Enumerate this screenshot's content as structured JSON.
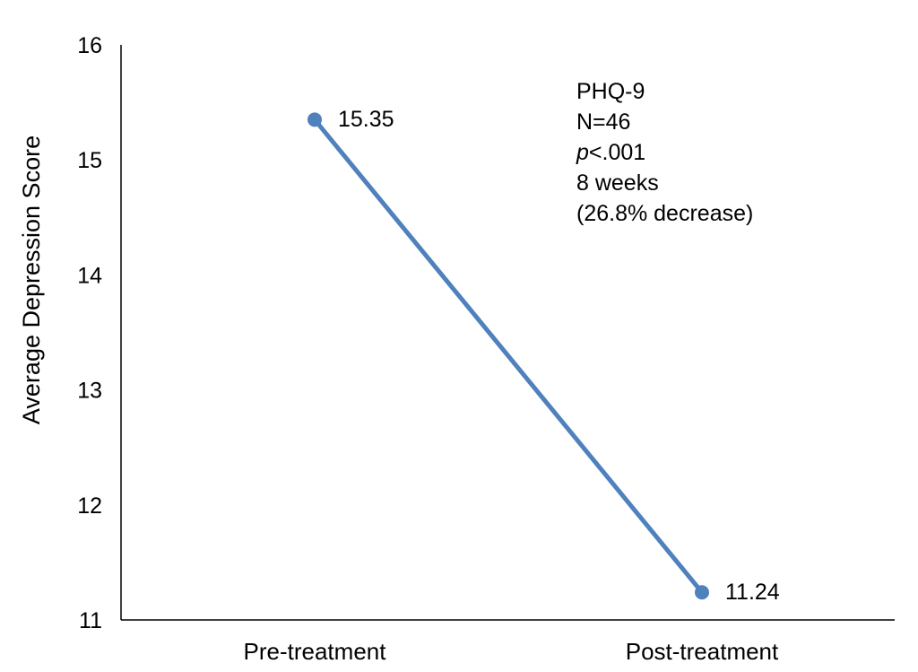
{
  "chart_data": {
    "type": "line",
    "categories": [
      "Pre-treatment",
      "Post-treatment"
    ],
    "series": [
      {
        "values": [
          15.35,
          11.24
        ],
        "data_labels": [
          "15.35",
          "11.24"
        ]
      }
    ],
    "ylabel": "Average Depression Score",
    "ylim": [
      11,
      16
    ],
    "yticks": [
      "11",
      "12",
      "13",
      "14",
      "15",
      "16"
    ],
    "grid": false,
    "series_color": "#4f81bd",
    "annotation": {
      "line1": "PHQ-9",
      "line2": "N=46",
      "line3_italic": "p",
      "line3_rest": "<.001",
      "line4": "8 weeks",
      "line5": "(26.8% decrease)"
    }
  }
}
